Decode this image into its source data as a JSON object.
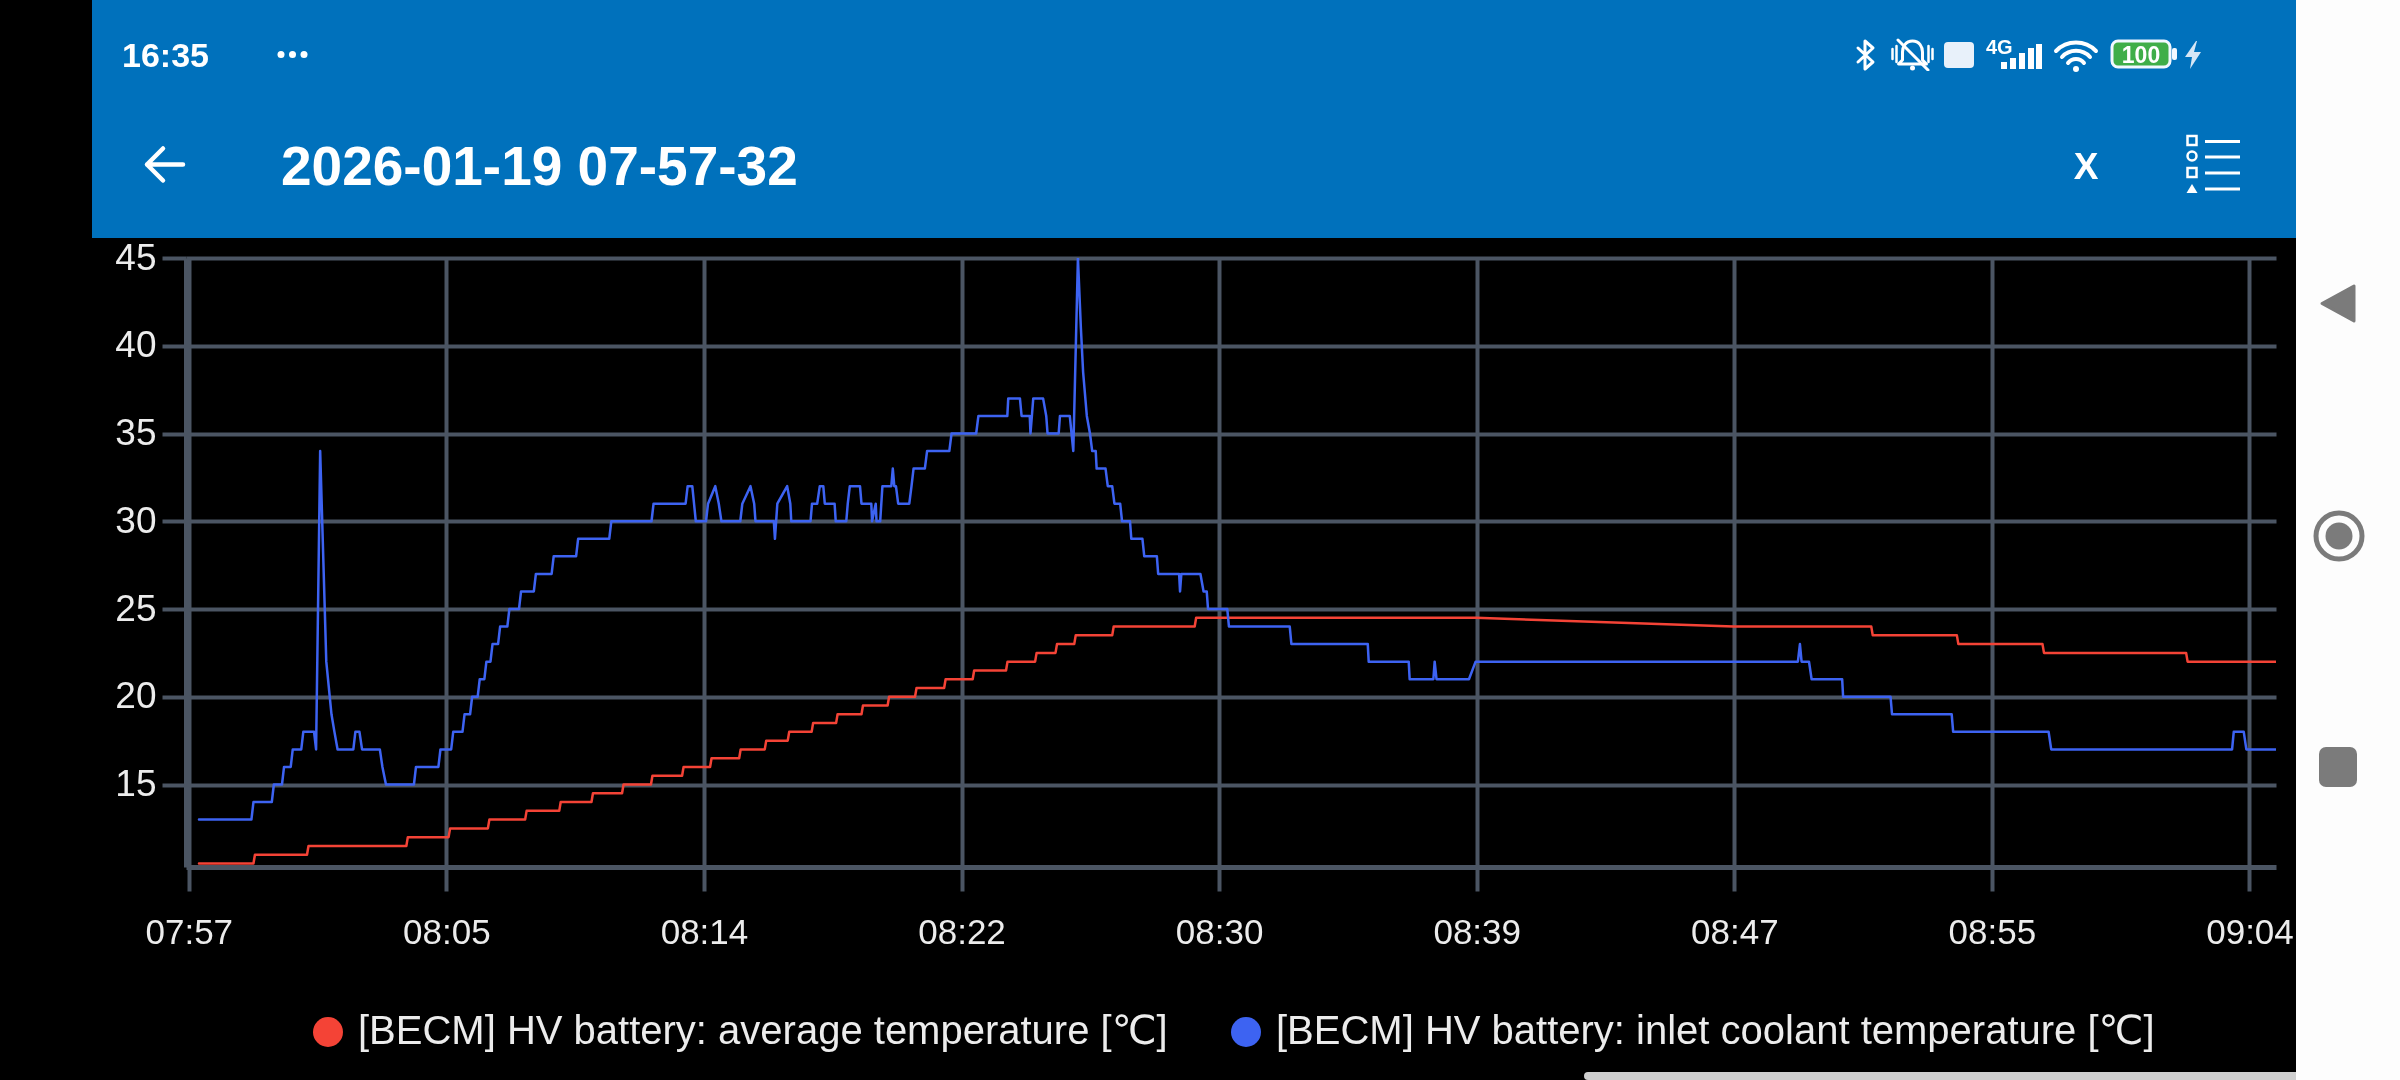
{
  "chart_data": {
    "type": "line",
    "title": "2026-01-19 07-57-32",
    "annotations": [
      "16:35",
      "4G",
      "100",
      "X"
    ],
    "series": [
      {
        "name": "[BECM] HV battery: average temperature [℃]",
        "color": "#f44336",
        "x": [
          7.9555,
          7.9849,
          7.9857,
          8.0138,
          8.0146,
          8.0674,
          8.0682,
          8.0902,
          8.091,
          8.1114,
          8.1122,
          8.1315,
          8.1323,
          8.1499,
          8.1507,
          8.1673,
          8.1681,
          8.1838,
          8.1846,
          8.1994,
          8.2002,
          8.2162,
          8.217,
          8.2313,
          8.2321,
          8.247,
          8.2478,
          8.2608,
          8.2616,
          8.2732,
          8.274,
          8.2861,
          8.2869,
          8.2993,
          8.3001,
          8.313,
          8.3138,
          8.3271,
          8.3279,
          8.3419,
          8.3427,
          8.3576,
          8.3584,
          8.373,
          8.3738,
          8.391,
          8.3918,
          8.4067,
          8.4075,
          8.4177,
          8.4185,
          8.4278,
          8.4286,
          8.4483,
          8.4491,
          8.4928,
          8.4936,
          8.6445,
          8.7836,
          8.8579,
          8.8587,
          8.9041,
          8.9049,
          8.9503,
          8.9511,
          9.0278,
          9.0286,
          9.0763
        ],
        "values": [
          10.5,
          10.5,
          11,
          11,
          11.5,
          11.5,
          12,
          12,
          12.5,
          12.5,
          13,
          13,
          13.5,
          13.5,
          14,
          14,
          14.5,
          14.5,
          15,
          15,
          15.5,
          15.5,
          16,
          16,
          16.5,
          16.5,
          17,
          17,
          17.5,
          17.5,
          18,
          18,
          18.5,
          18.5,
          19,
          19,
          19.5,
          19.5,
          20,
          20,
          20.5,
          20.5,
          21,
          21,
          21.5,
          21.5,
          22,
          22,
          22.5,
          22.5,
          23,
          23,
          23.5,
          23.5,
          24,
          24,
          24.5,
          24.5,
          24,
          24,
          23.5,
          23.5,
          23,
          23,
          22.5,
          22.5,
          22,
          22
        ]
      },
      {
        "name": "[BECM] HV battery: inlet coolant temperature [℃]",
        "color": "#3d63f2",
        "x": [
          7.9555,
          7.9838,
          7.9849,
          7.9948,
          7.9959,
          8.0003,
          8.0014,
          8.005,
          8.0061,
          8.0107,
          8.0118,
          8.0176,
          8.0187,
          8.0209,
          8.0242,
          8.027,
          8.0286,
          8.0303,
          8.0388,
          8.0399,
          8.0421,
          8.0435,
          8.0531,
          8.0545,
          8.0564,
          8.0715,
          8.0726,
          8.0847,
          8.0858,
          8.0916,
          8.0927,
          8.0977,
          8.0988,
          8.1018,
          8.1029,
          8.1059,
          8.107,
          8.1095,
          8.1106,
          8.1128,
          8.1139,
          8.1169,
          8.118,
          8.1219,
          8.123,
          8.1282,
          8.1293,
          8.1362,
          8.1373,
          8.1458,
          8.1469,
          8.159,
          8.1601,
          8.1769,
          8.178,
          8.1997,
          8.2008,
          8.2181,
          8.2192,
          8.2217,
          8.2236,
          8.2291,
          8.2302,
          8.2341,
          8.236,
          8.2374,
          8.2476,
          8.2487,
          8.2531,
          8.2551,
          8.2558,
          8.2657,
          8.2663,
          8.2676,
          8.2729,
          8.2746,
          8.2751,
          8.2855,
          8.2863,
          8.2891,
          8.2905,
          8.2924,
          8.2932,
          8.2985,
          8.2991,
          8.3048,
          8.3056,
          8.3067,
          8.3122,
          8.313,
          8.3183,
          8.3187,
          8.3207,
          8.3211,
          8.3231,
          8.3243,
          8.3291,
          8.3299,
          8.3307,
          8.3316,
          8.3328,
          8.3388,
          8.34,
          8.3411,
          8.3472,
          8.3484,
          8.3604,
          8.3616,
          8.3749,
          8.3761,
          8.3917,
          8.3922,
          8.3985,
          8.3994,
          8.4038,
          8.4042,
          8.4057,
          8.411,
          8.4127,
          8.4134,
          8.4194,
          8.4201,
          8.4254,
          8.4273,
          8.4298,
          8.4314,
          8.4326,
          8.4346,
          8.4363,
          8.4375,
          8.4394,
          8.4399,
          8.4447,
          8.4459,
          8.4483,
          8.4495,
          8.4526,
          8.4536,
          8.4579,
          8.4586,
          8.4646,
          8.4656,
          8.4724,
          8.4731,
          8.4844,
          8.4849,
          8.4856,
          8.4959,
          8.4976,
          8.4993,
          8.5,
          8.5104,
          8.5113,
          8.5441,
          8.545,
          8.5862,
          8.5867,
          8.6083,
          8.6088,
          8.6216,
          8.6223,
          8.6233,
          8.6408,
          8.6444,
          8.8183,
          8.8194,
          8.8203,
          8.8243,
          8.8257,
          8.8422,
          8.8427,
          8.8683,
          8.8691,
          8.9013,
          8.9021,
          8.9536,
          8.955,
          9.0526,
          9.0535,
          9.0589,
          9.0603,
          9.0763
        ],
        "values": [
          13,
          13,
          14,
          14,
          15,
          15,
          16,
          16,
          17,
          17,
          18,
          18,
          17,
          34,
          22,
          19,
          18,
          17,
          17,
          18,
          18,
          17,
          17,
          16,
          15,
          15,
          16,
          16,
          17,
          17,
          18,
          18,
          19,
          19,
          20,
          20,
          21,
          21,
          22,
          22,
          23,
          23,
          24,
          24,
          25,
          25,
          26,
          26,
          27,
          27,
          28,
          28,
          29,
          29,
          30,
          30,
          31,
          31,
          32,
          32,
          30,
          30,
          31,
          32,
          31,
          30,
          30,
          31,
          32,
          31,
          30,
          30,
          29,
          31,
          32,
          31,
          30,
          30,
          31,
          31,
          32,
          32,
          31,
          31,
          30,
          30,
          31,
          32,
          32,
          31,
          31,
          30,
          31,
          30,
          30,
          32,
          32,
          33,
          32,
          32,
          31,
          31,
          32,
          33,
          33,
          34,
          34,
          35,
          35,
          36,
          36,
          37,
          37,
          36,
          36,
          35,
          37,
          37,
          36,
          35,
          35,
          36,
          36,
          34,
          45,
          41,
          38.5,
          36,
          35,
          34,
          34,
          33,
          33,
          32,
          32,
          31,
          31,
          30,
          30,
          29,
          29,
          28,
          28,
          27,
          27,
          26,
          27,
          27,
          26,
          26,
          25,
          25,
          24,
          24,
          23,
          23,
          22,
          22,
          21,
          21,
          22,
          21,
          21,
          22,
          22,
          23,
          22,
          22,
          21,
          21,
          20,
          20,
          19,
          19,
          18,
          18,
          17,
          17,
          18,
          18,
          17,
          17
        ]
      }
    ],
    "xlim": [
      7.9485,
      9.0763
    ],
    "ylim": [
      10.3,
      45
    ],
    "xticks": [
      {
        "value": 7.95,
        "label": "07:57"
      },
      {
        "value": 8.089,
        "label": "08:05"
      },
      {
        "value": 8.228,
        "label": "08:14"
      },
      {
        "value": 8.367,
        "label": "08:22"
      },
      {
        "value": 8.506,
        "label": "08:30"
      },
      {
        "value": 8.645,
        "label": "08:39"
      },
      {
        "value": 8.784,
        "label": "08:47"
      },
      {
        "value": 8.923,
        "label": "08:55"
      },
      {
        "value": 9.062,
        "label": "09:04"
      }
    ],
    "yticks": [
      15,
      20,
      25,
      30,
      35,
      40,
      45
    ],
    "grid": true,
    "legend": "bottom"
  }
}
